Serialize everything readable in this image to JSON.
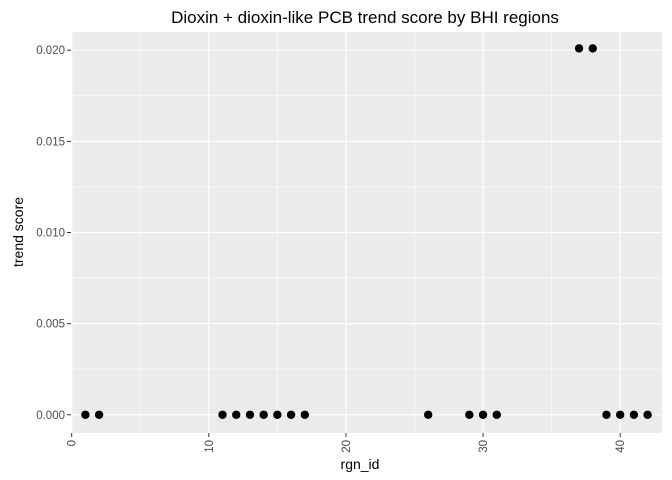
{
  "chart_data": {
    "type": "scatter",
    "title": "Dioxin + dioxin-like PCB trend score by BHI regions",
    "xlabel": "rgn_id",
    "ylabel": "trend score",
    "xlim": [
      -0.05,
      43.05
    ],
    "ylim": [
      -0.001,
      0.021
    ],
    "x_ticks": [
      0,
      10,
      20,
      30,
      40
    ],
    "y_ticks": [
      0.0,
      0.005,
      0.01,
      0.015,
      0.02
    ],
    "x_tick_labels": [
      "0",
      "10",
      "20",
      "30",
      "40"
    ],
    "y_tick_labels": [
      "0.000",
      "0.005",
      "0.010",
      "0.015",
      "0.020"
    ],
    "x_tick_label_rotation": "vertical",
    "grid": true,
    "legend": "none",
    "points": [
      {
        "x": 1,
        "y": 0.0
      },
      {
        "x": 2,
        "y": 0.0
      },
      {
        "x": 11,
        "y": 0.0
      },
      {
        "x": 12,
        "y": 0.0
      },
      {
        "x": 13,
        "y": 0.0
      },
      {
        "x": 14,
        "y": 0.0
      },
      {
        "x": 15,
        "y": 0.0
      },
      {
        "x": 16,
        "y": 0.0
      },
      {
        "x": 17,
        "y": 0.0
      },
      {
        "x": 26,
        "y": 0.0
      },
      {
        "x": 29,
        "y": 0.0
      },
      {
        "x": 30,
        "y": 0.0
      },
      {
        "x": 31,
        "y": 0.0
      },
      {
        "x": 37,
        "y": 0.0201
      },
      {
        "x": 38,
        "y": 0.0201
      },
      {
        "x": 39,
        "y": 0.0
      },
      {
        "x": 40,
        "y": 0.0
      },
      {
        "x": 41,
        "y": 0.0
      },
      {
        "x": 42,
        "y": 0.0
      }
    ],
    "colors": {
      "panel": "#ebebeb",
      "grid_major": "#ffffff",
      "point": "#000000",
      "tick": "#333333"
    }
  }
}
